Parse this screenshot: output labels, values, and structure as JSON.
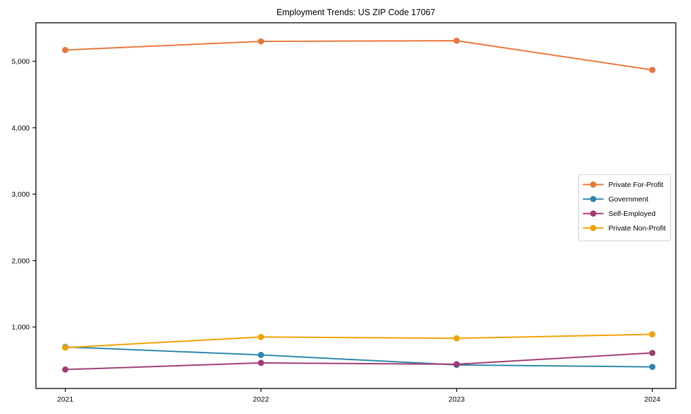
{
  "chart_data": {
    "type": "line",
    "title": "Employment Trends: US ZIP Code 17067",
    "x": [
      2021,
      2022,
      2023,
      2024
    ],
    "xtick_labels": [
      "2021",
      "2022",
      "2023",
      "2024"
    ],
    "yticks": [
      1000,
      2000,
      3000,
      4000,
      5000
    ],
    "ytick_labels": [
      "1,000",
      "2,000",
      "3,000",
      "4,000",
      "5,000"
    ],
    "xlim": [
      2020.85,
      2024.12
    ],
    "ylim": [
      75,
      5580
    ],
    "grid": false,
    "frame": true,
    "series": [
      {
        "name": "Private For-Profit",
        "color": "#E8763C",
        "values": [
          5170,
          5300,
          5310,
          4870
        ]
      },
      {
        "name": "Government",
        "color": "#2E86AB",
        "values": [
          700,
          580,
          430,
          400
        ]
      },
      {
        "name": "Self-Employed",
        "color": "#A23B72",
        "values": [
          360,
          460,
          440,
          610
        ]
      },
      {
        "name": "Private Non-Profit",
        "color": "#F2A104",
        "values": [
          690,
          850,
          830,
          890
        ]
      }
    ],
    "legend": {
      "position": "center-right",
      "border_color": "#cccccc",
      "background": "#ffffff",
      "entries": [
        "Private For-Profit",
        "Government",
        "Self-Employed",
        "Private Non-Profit"
      ]
    },
    "axis_color": "#000000"
  }
}
